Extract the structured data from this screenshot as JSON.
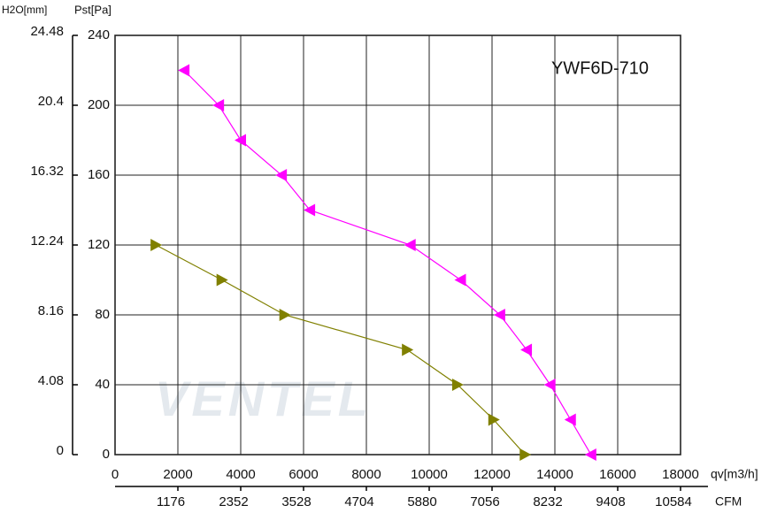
{
  "chart_data": {
    "type": "line",
    "title": "YWF6D-710",
    "watermark": "VENTEL",
    "x_label": "qv[m3/h]",
    "x2_label": "CFM",
    "y_label": "Pst[Pa]",
    "y2_label": "H2O[mm]",
    "xlim": [
      0,
      18000
    ],
    "xticks": [
      0,
      2000,
      4000,
      6000,
      8000,
      10000,
      12000,
      14000,
      16000,
      18000
    ],
    "x2lim": [
      0,
      10584
    ],
    "x2ticks": [
      1176,
      2352,
      3528,
      4704,
      5880,
      7056,
      8232,
      9408,
      10584
    ],
    "ylim": [
      0,
      240
    ],
    "yticks": [
      0,
      40,
      80,
      120,
      160,
      200,
      240
    ],
    "y2lim": [
      0,
      24.48
    ],
    "y2ticks": [
      0,
      4.08,
      8.16,
      12.24,
      16.32,
      20.4,
      24.48
    ],
    "grid": true,
    "series": [
      {
        "color": "#ff00ff",
        "marker": "triangle-left",
        "x": [
          2200,
          3300,
          4000,
          5300,
          6200,
          9400,
          11000,
          12250,
          13100,
          13850,
          14500,
          15150
        ],
        "values": [
          220,
          200,
          180,
          160,
          140,
          120,
          100,
          80,
          60,
          40,
          20,
          0
        ]
      },
      {
        "color": "#808000",
        "marker": "triangle-right",
        "x": [
          1300,
          3400,
          5400,
          9300,
          10900,
          12050,
          13050
        ],
        "values": [
          120,
          100,
          80,
          60,
          40,
          20,
          0
        ]
      }
    ]
  }
}
